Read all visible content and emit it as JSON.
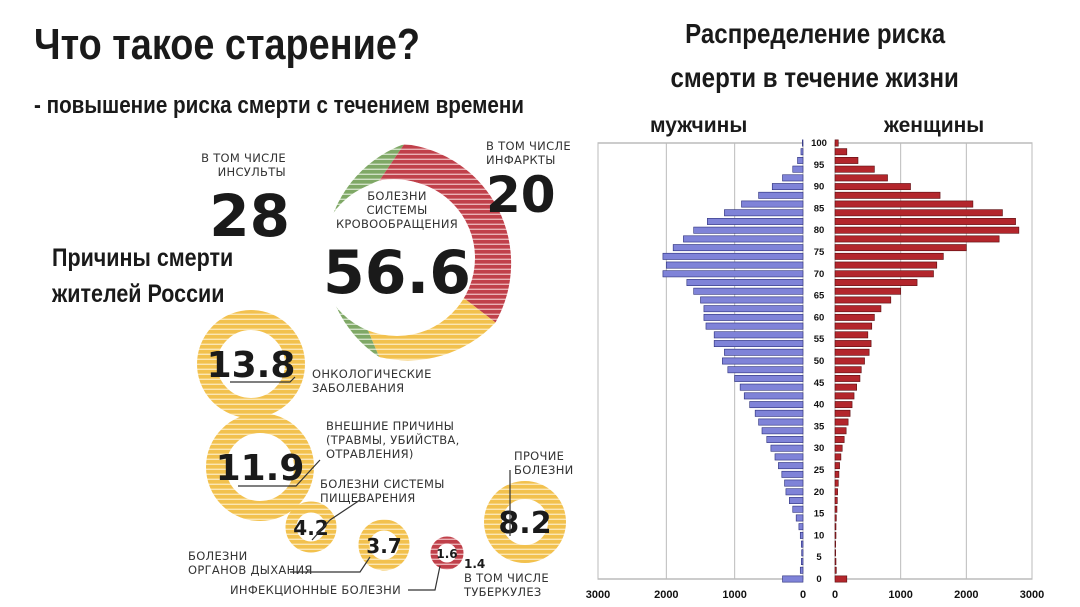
{
  "header": {
    "title": "Что такое старение?",
    "subtitle": "- повышение риска смерти с течением времени"
  },
  "causes": {
    "title_line1": "Причины смерти",
    "title_line2": "жителей России",
    "cardiovascular": {
      "value": "56.6",
      "label_lines": [
        "БОЛЕЗНИ",
        "СИСТЕМЫ",
        "КРОВООБРАЩЕНИЯ"
      ],
      "strokes_value": "28",
      "strokes_label": [
        "В ТОМ ЧИСЛЕ",
        "ИНСУЛЬТЫ"
      ],
      "infarcts_value": "20",
      "infarcts_label": [
        "В ТОМ ЧИСЛЕ",
        "ИНФАРКТЫ"
      ]
    },
    "oncology": {
      "value": "13.8",
      "label": [
        "ОНКОЛОГИЧЕСКИЕ",
        "ЗАБОЛЕВАНИЯ"
      ]
    },
    "external": {
      "value": "11.9",
      "label": [
        "ВНЕШНИЕ ПРИЧИНЫ",
        "(ТРАВМЫ, УБИЙСТВА,",
        "ОТРАВЛЕНИЯ)"
      ]
    },
    "digestive": {
      "value": "4.2",
      "label": [
        "БОЛЕЗНИ СИСТЕМЫ",
        "ПИЩЕВАРЕНИЯ"
      ]
    },
    "respiratory": {
      "value": "3.7",
      "label": [
        "БОЛЕЗНИ",
        "ОРГАНОВ ДЫХАНИЯ"
      ]
    },
    "infectious": {
      "value": "1.6",
      "label": "ИНФЕКЦИОННЫЕ БОЛЕЗНИ"
    },
    "tuberculosis": {
      "value": "1.4",
      "label": [
        "В ТОМ ЧИСЛЕ",
        "ТУБЕРКУЛЕЗ"
      ]
    },
    "other": {
      "value": "8.2",
      "label": [
        "ПРОЧИЕ",
        "БОЛЕЗНИ"
      ]
    },
    "colors": {
      "green": "#7fa866",
      "red": "#c0404a",
      "yellow": "#f2c14e",
      "ring_yellow": "#f0c050"
    }
  },
  "pyramid": {
    "title_line1": "Распределение риска",
    "title_line2": "смерти в течение жизни",
    "male_label": "мужчины",
    "female_label": "женщины",
    "male_color": "#7f83d8",
    "female_color": "#b3262c"
  },
  "chart_data": [
    {
      "type": "pie",
      "title": "Причины смерти жителей России",
      "categories": [
        "Болезни системы кровообращения",
        "Онкологические заболевания",
        "Внешние причины",
        "Болезни системы пищеварения",
        "Болезни органов дыхания",
        "Инфекционные болезни",
        "Прочие болезни"
      ],
      "values": [
        56.6,
        13.8,
        11.9,
        4.2,
        3.7,
        1.6,
        8.2
      ],
      "sub_values": {
        "Инсульты": 28,
        "Инфаркты": 20,
        "Туберкулез": 1.4
      }
    },
    {
      "type": "bar",
      "title": "Распределение риска смерти в течение жизни",
      "orientation": "horizontal",
      "ages": [
        0,
        2,
        4,
        6,
        8,
        10,
        12,
        14,
        16,
        18,
        20,
        22,
        24,
        26,
        28,
        30,
        32,
        34,
        36,
        38,
        40,
        42,
        44,
        46,
        48,
        50,
        52,
        54,
        56,
        58,
        60,
        62,
        64,
        66,
        68,
        70,
        72,
        74,
        76,
        78,
        80,
        82,
        84,
        86,
        88,
        90,
        92,
        94,
        96,
        98,
        100
      ],
      "series": [
        {
          "name": "мужчины",
          "values": [
            300,
            40,
            25,
            20,
            25,
            40,
            60,
            100,
            150,
            200,
            250,
            270,
            310,
            360,
            410,
            470,
            530,
            600,
            650,
            700,
            780,
            860,
            920,
            1000,
            1100,
            1180,
            1150,
            1300,
            1300,
            1420,
            1450,
            1450,
            1500,
            1600,
            1700,
            2050,
            2000,
            2050,
            1900,
            1750,
            1600,
            1400,
            1150,
            900,
            650,
            450,
            300,
            150,
            80,
            30,
            10
          ]
        },
        {
          "name": "женщины",
          "values": [
            180,
            20,
            15,
            10,
            10,
            15,
            15,
            20,
            30,
            35,
            40,
            50,
            60,
            70,
            90,
            110,
            140,
            170,
            200,
            230,
            260,
            290,
            330,
            380,
            400,
            450,
            520,
            550,
            500,
            560,
            600,
            700,
            850,
            1000,
            1250,
            1500,
            1550,
            1650,
            2000,
            2500,
            2800,
            2750,
            2550,
            2100,
            1600,
            1150,
            800,
            600,
            350,
            180,
            50
          ]
        }
      ],
      "xlim": [
        0,
        3000
      ],
      "xticks": [
        0,
        1000,
        2000,
        3000
      ],
      "yticks": [
        0,
        5,
        10,
        15,
        20,
        25,
        30,
        35,
        40,
        45,
        50,
        55,
        60,
        65,
        70,
        75,
        80,
        85,
        90,
        95,
        100
      ]
    }
  ]
}
